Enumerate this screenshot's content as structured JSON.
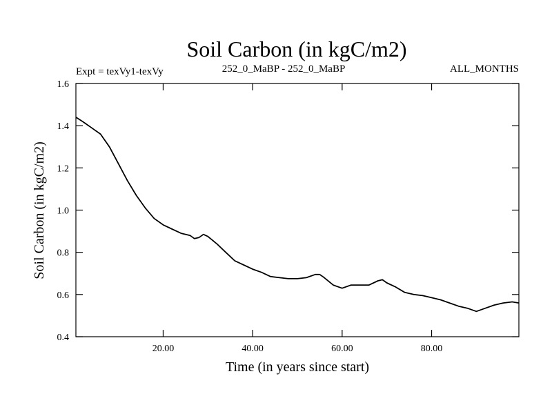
{
  "chart_data": {
    "type": "line",
    "title": "Soil Carbon (in kgC/m2)",
    "subtitle_left": "Expt = texVy1-texVy",
    "subtitle_center": "252_0_MaBP - 252_0_MaBP",
    "subtitle_right": "ALL_MONTHS",
    "xlabel": "Time (in years since start)",
    "ylabel": "Soil Carbon (in kgC/m2)",
    "xlim": [
      0.5,
      99.5
    ],
    "ylim": [
      0.4,
      1.6
    ],
    "xticks": [
      20,
      40,
      60,
      80
    ],
    "xtick_labels": [
      "20.00",
      "40.00",
      "60.00",
      "80.00"
    ],
    "yticks": [
      0.4,
      0.6,
      0.8,
      1.0,
      1.2,
      1.4,
      1.6
    ],
    "ytick_labels": [
      "0.4",
      "0.6",
      "0.8",
      "1.0",
      "1.2",
      "1.4",
      "1.6"
    ],
    "series": [
      {
        "name": "Soil Carbon",
        "color": "#000000",
        "x": [
          0.5,
          2,
          4,
          6,
          8,
          10,
          12,
          14,
          16,
          18,
          20,
          22,
          24,
          26,
          27,
          28,
          29,
          30,
          32,
          34,
          36,
          38,
          40,
          42,
          44,
          46,
          48,
          50,
          52,
          54,
          55,
          56,
          58,
          60,
          62,
          64,
          66,
          68,
          69,
          70,
          72,
          74,
          76,
          78,
          80,
          82,
          84,
          86,
          88,
          90,
          92,
          94,
          96,
          98,
          99.5
        ],
        "y": [
          1.44,
          1.42,
          1.39,
          1.36,
          1.3,
          1.22,
          1.14,
          1.07,
          1.01,
          0.96,
          0.93,
          0.91,
          0.89,
          0.88,
          0.865,
          0.87,
          0.885,
          0.875,
          0.84,
          0.8,
          0.76,
          0.74,
          0.72,
          0.705,
          0.685,
          0.68,
          0.675,
          0.675,
          0.68,
          0.695,
          0.695,
          0.68,
          0.645,
          0.63,
          0.645,
          0.645,
          0.645,
          0.665,
          0.67,
          0.655,
          0.635,
          0.61,
          0.6,
          0.595,
          0.585,
          0.575,
          0.56,
          0.545,
          0.535,
          0.52,
          0.535,
          0.55,
          0.56,
          0.565,
          0.56
        ]
      }
    ]
  }
}
